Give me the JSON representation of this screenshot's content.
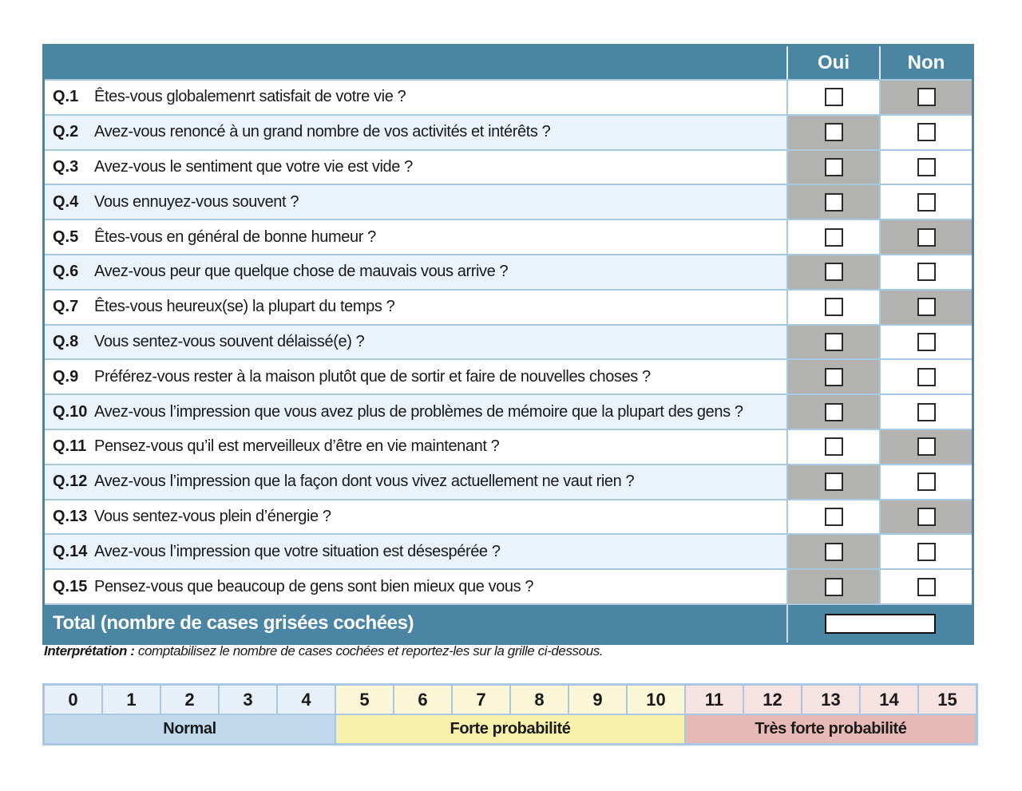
{
  "header": {
    "oui_label": "Oui",
    "non_label": "Non"
  },
  "questions": [
    {
      "num": "Q.1",
      "text": "Êtes-vous globalemenrt satisfait de votre vie ?",
      "shaded": "non"
    },
    {
      "num": "Q.2",
      "text": "Avez-vous renoncé à un grand nombre de vos activités et intérêts ?",
      "shaded": "oui"
    },
    {
      "num": "Q.3",
      "text": "Avez-vous le sentiment que votre vie est vide ?",
      "shaded": "oui"
    },
    {
      "num": "Q.4",
      "text": "Vous ennuyez-vous souvent ?",
      "shaded": "oui"
    },
    {
      "num": "Q.5",
      "text": "Êtes-vous en général de bonne humeur ?",
      "shaded": "non"
    },
    {
      "num": "Q.6",
      "text": "Avez-vous peur que quelque chose de mauvais vous arrive ?",
      "shaded": "oui"
    },
    {
      "num": "Q.7",
      "text": "Êtes-vous heureux(se) la plupart du temps ?",
      "shaded": "non"
    },
    {
      "num": "Q.8",
      "text": "Vous sentez-vous souvent délaissé(e) ?",
      "shaded": "oui"
    },
    {
      "num": "Q.9",
      "text": "Préférez-vous rester à la maison plutôt que de sortir et faire de nouvelles choses ?",
      "shaded": "oui"
    },
    {
      "num": "Q.10",
      "text": "Avez-vous l’impression que vous avez plus de problèmes de mémoire que la plupart des gens ?",
      "shaded": "oui"
    },
    {
      "num": "Q.11",
      "text": "Pensez-vous qu’il est merveilleux d’être en vie maintenant ?",
      "shaded": "non"
    },
    {
      "num": "Q.12",
      "text": "Avez-vous l’impression que la façon dont vous vivez actuellement ne vaut rien ?",
      "shaded": "oui"
    },
    {
      "num": "Q.13",
      "text": "Vous sentez-vous plein d’énergie ?",
      "shaded": "non"
    },
    {
      "num": "Q.14",
      "text": "Avez-vous l’impression que votre situation est désespérée ?",
      "shaded": "oui"
    },
    {
      "num": "Q.15",
      "text": "Pensez-vous que beaucoup de gens sont bien mieux que vous ?",
      "shaded": "oui"
    }
  ],
  "total": {
    "label": "Total (nombre de cases grisées cochées)",
    "value": ""
  },
  "interpretation": {
    "label": "Interprétation :",
    "text": " comptabilisez le nombre de cases cochées et reportez-les sur la grille ci-dessous."
  },
  "scale": {
    "numbers": [
      "0",
      "1",
      "2",
      "3",
      "4",
      "5",
      "6",
      "7",
      "8",
      "9",
      "10",
      "11",
      "12",
      "13",
      "14",
      "15"
    ],
    "bands": [
      {
        "label": "Normal",
        "span": 5,
        "cell_color": "#e7f0f8",
        "band_color": "#c0d9ec"
      },
      {
        "label": "Forte probabilité",
        "span": 6,
        "cell_color": "#fbf7d6",
        "band_color": "#f6f0aa"
      },
      {
        "label": "Très forte probabilité",
        "span": 5,
        "cell_color": "#f6e2e1",
        "band_color": "#e7b9b6"
      }
    ]
  },
  "colors": {
    "teal": "#4a86a4",
    "shaded_cell": "#b2b2b1",
    "stripe_row": "#eaf2fa",
    "row_border": "#a9cade",
    "scale_border": "#a9c7e2"
  }
}
